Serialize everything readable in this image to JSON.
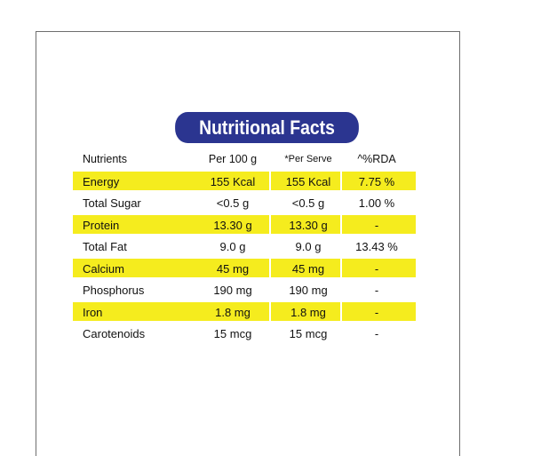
{
  "title": "Nutritional Facts",
  "colors": {
    "header_bg": "#2b3590",
    "highlight": "#f5ec1e",
    "text": "#111111"
  },
  "columns": [
    "Nutrients",
    "Per 100 g",
    "*Per Serve",
    "^%RDA"
  ],
  "rows": [
    {
      "nutrient": "Energy",
      "per100": "155 Kcal",
      "perServe": "155 Kcal",
      "rda": "7.75 %",
      "highlight": true
    },
    {
      "nutrient": "Total Sugar",
      "per100": "<0.5 g",
      "perServe": "<0.5 g",
      "rda": "1.00 %",
      "highlight": false
    },
    {
      "nutrient": "Protein",
      "per100": "13.30 g",
      "perServe": "13.30 g",
      "rda": "-",
      "highlight": true
    },
    {
      "nutrient": "Total Fat",
      "per100": "9.0 g",
      "perServe": "9.0 g",
      "rda": "13.43 %",
      "highlight": false
    },
    {
      "nutrient": "Calcium",
      "per100": "45 mg",
      "perServe": "45 mg",
      "rda": "-",
      "highlight": true
    },
    {
      "nutrient": "Phosphorus",
      "per100": "190 mg",
      "perServe": "190 mg",
      "rda": "-",
      "highlight": false
    },
    {
      "nutrient": "Iron",
      "per100": "1.8 mg",
      "perServe": "1.8 mg",
      "rda": "-",
      "highlight": true
    },
    {
      "nutrient": "Carotenoids",
      "per100": "15 mcg",
      "perServe": "15 mcg",
      "rda": "-",
      "highlight": false
    }
  ]
}
